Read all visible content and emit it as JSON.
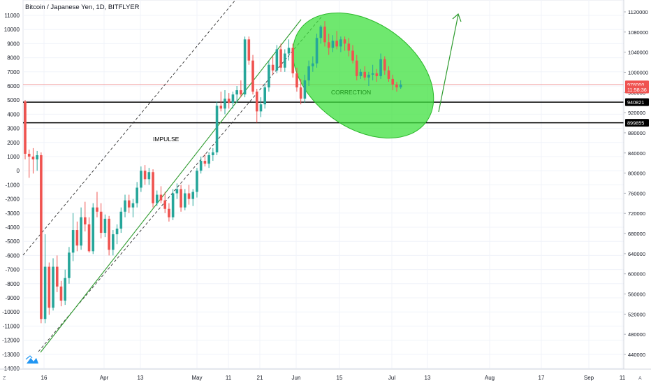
{
  "header": {
    "title": "Bitcoin / Japanese Yen, 1D, BITFLYER"
  },
  "chart_data": {
    "type": "candlestick",
    "title": "Bitcoin / Japanese Yen, 1D, BITFLYER",
    "left_axis": {
      "ticks": [
        "11000",
        "10000",
        "9000",
        "8000",
        "7000",
        "6000",
        "5000",
        "4000",
        "3000",
        "2000",
        "1000",
        "0",
        "-1000",
        "-2000",
        "-3000",
        "-4000",
        "-5000",
        "-6000",
        "-7000",
        "-8000",
        "-9000",
        "-10000",
        "-11000",
        "-12000",
        "-13000",
        "-14000"
      ],
      "range": [
        -14000,
        11000
      ]
    },
    "right_axis": {
      "ticks": [
        "1120000",
        "1080000",
        "1040000",
        "1000000",
        "960000",
        "920000",
        "880000",
        "840000",
        "800000",
        "760000",
        "720000",
        "680000",
        "640000",
        "600000",
        "560000",
        "520000",
        "480000",
        "440000"
      ],
      "range": [
        440000,
        1120000
      ],
      "price_labels": [
        {
          "text": "976000",
          "value": 976000,
          "color": "#ef5350"
        },
        {
          "text": "11:58:36",
          "value": 966000,
          "color": "#ef5350"
        },
        {
          "text": "940821",
          "value": 940821,
          "color": "#000000"
        },
        {
          "text": "899855",
          "value": 899855,
          "color": "#000000"
        }
      ]
    },
    "x_axis": {
      "ticks": [
        "16",
        "Apr",
        "13",
        "May",
        "11",
        "21",
        "Jun",
        "15",
        "Jul",
        "13",
        "Aug",
        "17",
        "Sep",
        "11"
      ]
    },
    "horizontal_lines": [
      {
        "value": 940821,
        "color": "#000000"
      },
      {
        "value": 899855,
        "color": "#000000"
      },
      {
        "value": 976000,
        "color": "#f4a3a3"
      }
    ],
    "annotations": [
      {
        "text": "IMPULSE",
        "color": "#000000"
      },
      {
        "text": "CORRECTION",
        "color": "#1b8f1b"
      }
    ],
    "colors": {
      "up": "#26a69a",
      "down": "#ef5350",
      "trend": "#2e9b2e",
      "ellipse": "#3fe03f"
    },
    "candles": [
      {
        "o": 4900,
        "h": 5000,
        "l": 800,
        "c": 1200
      },
      {
        "o": 1200,
        "h": 1500,
        "l": -500,
        "c": 1000
      },
      {
        "o": 1000,
        "h": 1600,
        "l": -200,
        "c": 800
      },
      {
        "o": 800,
        "h": 1400,
        "l": 0,
        "c": 1100
      },
      {
        "o": 1100,
        "h": 1300,
        "l": -10800,
        "c": -10500
      },
      {
        "o": -10500,
        "h": -4500,
        "l": -10800,
        "c": -6800
      },
      {
        "o": -6800,
        "h": -6500,
        "l": -10200,
        "c": -9700
      },
      {
        "o": -9700,
        "h": -6200,
        "l": -9900,
        "c": -6800
      },
      {
        "o": -6800,
        "h": -6000,
        "l": -8600,
        "c": -8200
      },
      {
        "o": -8200,
        "h": -7800,
        "l": -9600,
        "c": -9200
      },
      {
        "o": -9200,
        "h": -7000,
        "l": -9500,
        "c": -7600
      },
      {
        "o": -7600,
        "h": -5400,
        "l": -8000,
        "c": -5800
      },
      {
        "o": -5800,
        "h": -3000,
        "l": -6400,
        "c": -4200
      },
      {
        "o": -4200,
        "h": -3600,
        "l": -5700,
        "c": -5300
      },
      {
        "o": -5300,
        "h": -2600,
        "l": -5600,
        "c": -3300
      },
      {
        "o": -3300,
        "h": -2200,
        "l": -4300,
        "c": -3800
      },
      {
        "o": -3800,
        "h": -3300,
        "l": -5800,
        "c": -5700
      },
      {
        "o": -5700,
        "h": -2300,
        "l": -5900,
        "c": -2600
      },
      {
        "o": -2600,
        "h": -1500,
        "l": -3300,
        "c": -2900
      },
      {
        "o": -2900,
        "h": -2300,
        "l": -4800,
        "c": -4400
      },
      {
        "o": -4400,
        "h": -3100,
        "l": -4700,
        "c": -3400
      },
      {
        "o": -3400,
        "h": -3200,
        "l": -6000,
        "c": -5600
      },
      {
        "o": -5600,
        "h": -4200,
        "l": -6000,
        "c": -4500
      },
      {
        "o": -4500,
        "h": -3800,
        "l": -5200,
        "c": -4100
      },
      {
        "o": -4100,
        "h": -2600,
        "l": -4400,
        "c": -2900
      },
      {
        "o": -2900,
        "h": -1700,
        "l": -3300,
        "c": -2100
      },
      {
        "o": -2100,
        "h": -1700,
        "l": -3000,
        "c": -2600
      },
      {
        "o": -2600,
        "h": -2000,
        "l": -3300,
        "c": -2300
      },
      {
        "o": -2300,
        "h": -800,
        "l": -2600,
        "c": -1200
      },
      {
        "o": -1200,
        "h": 300,
        "l": -1500,
        "c": 0
      },
      {
        "o": 0,
        "h": 400,
        "l": -1000,
        "c": -600
      },
      {
        "o": -600,
        "h": 200,
        "l": -1000,
        "c": -100
      },
      {
        "o": -100,
        "h": 100,
        "l": -2600,
        "c": -2300
      },
      {
        "o": -2300,
        "h": -1400,
        "l": -2500,
        "c": -1700
      },
      {
        "o": -1700,
        "h": -1100,
        "l": -2300,
        "c": -2100
      },
      {
        "o": -2100,
        "h": -1500,
        "l": -3000,
        "c": -2700
      },
      {
        "o": -2700,
        "h": -2300,
        "l": -3600,
        "c": -3300
      },
      {
        "o": -3300,
        "h": -1300,
        "l": -3500,
        "c": -1600
      },
      {
        "o": -1600,
        "h": -900,
        "l": -2000,
        "c": -1300
      },
      {
        "o": -1300,
        "h": -1000,
        "l": -2900,
        "c": -2600
      },
      {
        "o": -2600,
        "h": -1300,
        "l": -2800,
        "c": -1600
      },
      {
        "o": -1600,
        "h": -1000,
        "l": -2400,
        "c": -2000
      },
      {
        "o": -2000,
        "h": -1300,
        "l": -2500,
        "c": -1500
      },
      {
        "o": -1500,
        "h": 200,
        "l": -1900,
        "c": 0
      },
      {
        "o": 0,
        "h": 1000,
        "l": -200,
        "c": 700
      },
      {
        "o": 700,
        "h": 1200,
        "l": 300,
        "c": 500
      },
      {
        "o": 500,
        "h": 1300,
        "l": 200,
        "c": 1100
      },
      {
        "o": 1100,
        "h": 1600,
        "l": 700,
        "c": 1300
      },
      {
        "o": 1300,
        "h": 4900,
        "l": 1100,
        "c": 4600
      },
      {
        "o": 4600,
        "h": 5600,
        "l": 4200,
        "c": 4400
      },
      {
        "o": 4400,
        "h": 5700,
        "l": 4000,
        "c": 5100
      },
      {
        "o": 5100,
        "h": 5500,
        "l": 4400,
        "c": 4800
      },
      {
        "o": 4800,
        "h": 5600,
        "l": 4400,
        "c": 5400
      },
      {
        "o": 5400,
        "h": 6000,
        "l": 4800,
        "c": 5700
      },
      {
        "o": 5700,
        "h": 6400,
        "l": 5200,
        "c": 5400
      },
      {
        "o": 5400,
        "h": 9500,
        "l": 5200,
        "c": 9300
      },
      {
        "o": 9300,
        "h": 9500,
        "l": 7500,
        "c": 7800
      },
      {
        "o": 7800,
        "h": 8200,
        "l": 5400,
        "c": 5600
      },
      {
        "o": 5600,
        "h": 5800,
        "l": 3400,
        "c": 4200
      },
      {
        "o": 4200,
        "h": 5200,
        "l": 3800,
        "c": 4700
      },
      {
        "o": 4700,
        "h": 6200,
        "l": 4400,
        "c": 5900
      },
      {
        "o": 5900,
        "h": 7800,
        "l": 5600,
        "c": 7500
      },
      {
        "o": 7500,
        "h": 8100,
        "l": 6800,
        "c": 7100
      },
      {
        "o": 7100,
        "h": 8900,
        "l": 6900,
        "c": 8600
      },
      {
        "o": 8600,
        "h": 9000,
        "l": 7000,
        "c": 7300
      },
      {
        "o": 7300,
        "h": 8600,
        "l": 7000,
        "c": 8300
      },
      {
        "o": 8300,
        "h": 9300,
        "l": 7800,
        "c": 8700
      },
      {
        "o": 8700,
        "h": 9000,
        "l": 6600,
        "c": 6900
      },
      {
        "o": 6900,
        "h": 7300,
        "l": 5600,
        "c": 5900
      },
      {
        "o": 5900,
        "h": 6500,
        "l": 4700,
        "c": 5100
      },
      {
        "o": 5100,
        "h": 6800,
        "l": 4800,
        "c": 6400
      },
      {
        "o": 6400,
        "h": 7800,
        "l": 6000,
        "c": 7400
      },
      {
        "o": 7400,
        "h": 8100,
        "l": 7000,
        "c": 7600
      },
      {
        "o": 7600,
        "h": 9700,
        "l": 7300,
        "c": 9400
      },
      {
        "o": 9400,
        "h": 10300,
        "l": 9000,
        "c": 10200
      },
      {
        "o": 10200,
        "h": 10600,
        "l": 8800,
        "c": 9100
      },
      {
        "o": 9100,
        "h": 9700,
        "l": 8200,
        "c": 8700
      },
      {
        "o": 8700,
        "h": 9600,
        "l": 8400,
        "c": 9200
      },
      {
        "o": 9200,
        "h": 9900,
        "l": 8600,
        "c": 8800
      },
      {
        "o": 8800,
        "h": 9500,
        "l": 8400,
        "c": 9300
      },
      {
        "o": 9300,
        "h": 9500,
        "l": 8500,
        "c": 9000
      },
      {
        "o": 9000,
        "h": 9400,
        "l": 8100,
        "c": 8500
      },
      {
        "o": 8500,
        "h": 8900,
        "l": 7600,
        "c": 7800
      },
      {
        "o": 7800,
        "h": 8200,
        "l": 6400,
        "c": 6700
      },
      {
        "o": 6700,
        "h": 7200,
        "l": 6500,
        "c": 7000
      },
      {
        "o": 7000,
        "h": 7400,
        "l": 6400,
        "c": 6600
      },
      {
        "o": 6600,
        "h": 7000,
        "l": 6000,
        "c": 6800
      },
      {
        "o": 6800,
        "h": 7500,
        "l": 6400,
        "c": 6900
      },
      {
        "o": 6900,
        "h": 7200,
        "l": 6300,
        "c": 6700
      },
      {
        "o": 6700,
        "h": 8300,
        "l": 6500,
        "c": 7900
      },
      {
        "o": 7900,
        "h": 8100,
        "l": 6800,
        "c": 7100
      },
      {
        "o": 7100,
        "h": 7400,
        "l": 6300,
        "c": 6500
      },
      {
        "o": 6500,
        "h": 6800,
        "l": 5700,
        "c": 6100
      },
      {
        "o": 6100,
        "h": 6300,
        "l": 5600,
        "c": 5900
      },
      {
        "o": 5900,
        "h": 6400,
        "l": 5800,
        "c": 6100
      }
    ]
  }
}
